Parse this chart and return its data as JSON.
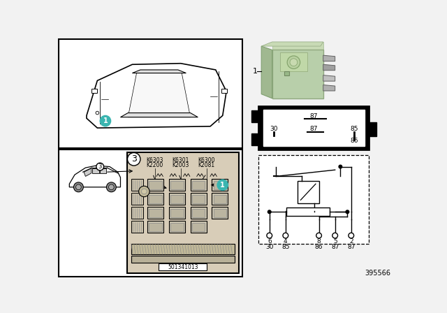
{
  "bg_color": "#f2f2f2",
  "white": "#ffffff",
  "black": "#000000",
  "relay_green": "#b8cfaa",
  "relay_green_dark": "#9ab890",
  "teal_circle": "#3ab5b0",
  "gray_pin": "#909090",
  "fuse_bg": "#d8cdb8",
  "part_number": "395566",
  "fuse_box_code": "501341013",
  "pin_nums_top": [
    "6",
    "4",
    "8",
    "5",
    "2"
  ],
  "pin_nums_bottom": [
    "30",
    "85",
    "86",
    "87",
    "87"
  ]
}
